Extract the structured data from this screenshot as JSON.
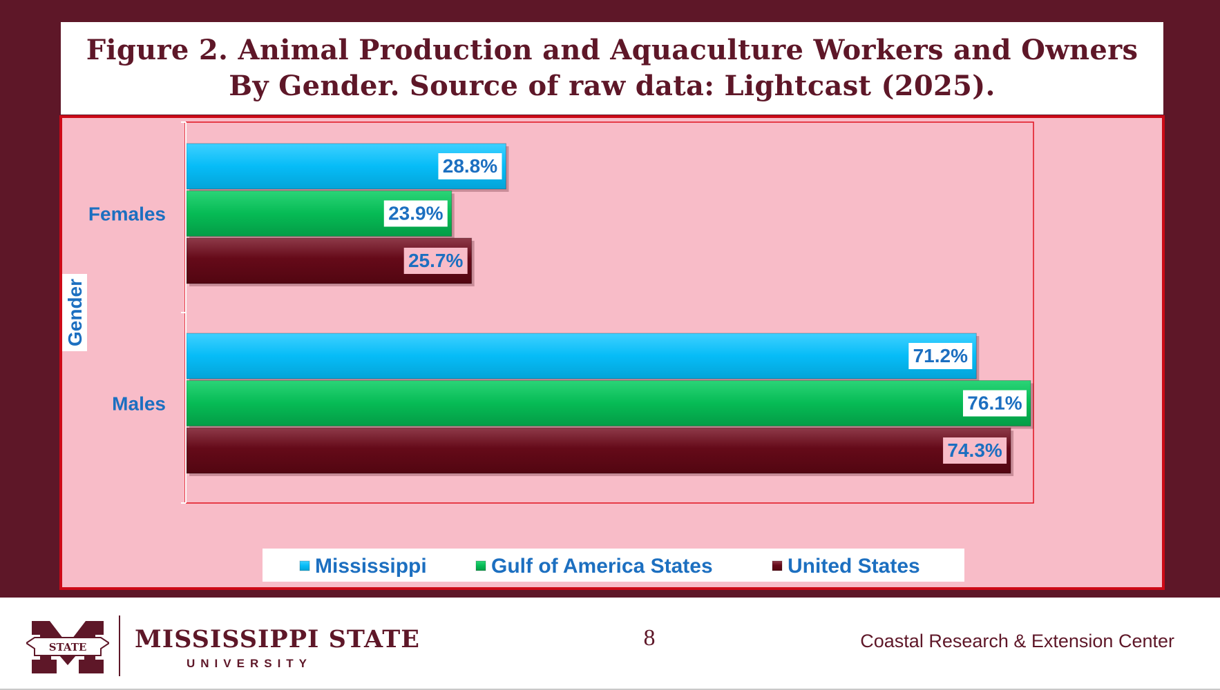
{
  "title": {
    "line1": "Figure 2. Animal Production and Aquaculture Workers and Owners",
    "line2": "By Gender. Source of raw data: Lightcast (2025)."
  },
  "chart_data": {
    "type": "bar",
    "orientation": "horizontal",
    "categories": [
      "Females",
      "Males"
    ],
    "series": [
      {
        "name": "Mississippi",
        "values": [
          28.8,
          71.2
        ],
        "labels": [
          "28.8%",
          "71.2%"
        ],
        "color": "#06bcf7"
      },
      {
        "name": "Gulf of America States",
        "values": [
          23.9,
          76.1
        ],
        "labels": [
          "23.9%",
          "76.1%"
        ],
        "color": "#06bb55"
      },
      {
        "name": "United States",
        "values": [
          25.7,
          74.3
        ],
        "labels": [
          "25.7%",
          "74.3%"
        ],
        "color": "#650a19"
      }
    ],
    "ylabel": "Gender",
    "xlabel": "",
    "xlim": [
      0,
      80
    ],
    "grid": false,
    "legend": "bottom"
  },
  "colors": {
    "maroon": "#5e1728",
    "chart_bg": "#f8bcc8",
    "frame_border": "#cc0a17",
    "label_text": "#1c6fc0"
  },
  "footer": {
    "logo_text": "STATE",
    "university_name": "MISSISSIPPI STATE",
    "university_sub": "UNIVERSITY",
    "page_number": "8",
    "center_name": "Coastal Research & Extension Center"
  }
}
